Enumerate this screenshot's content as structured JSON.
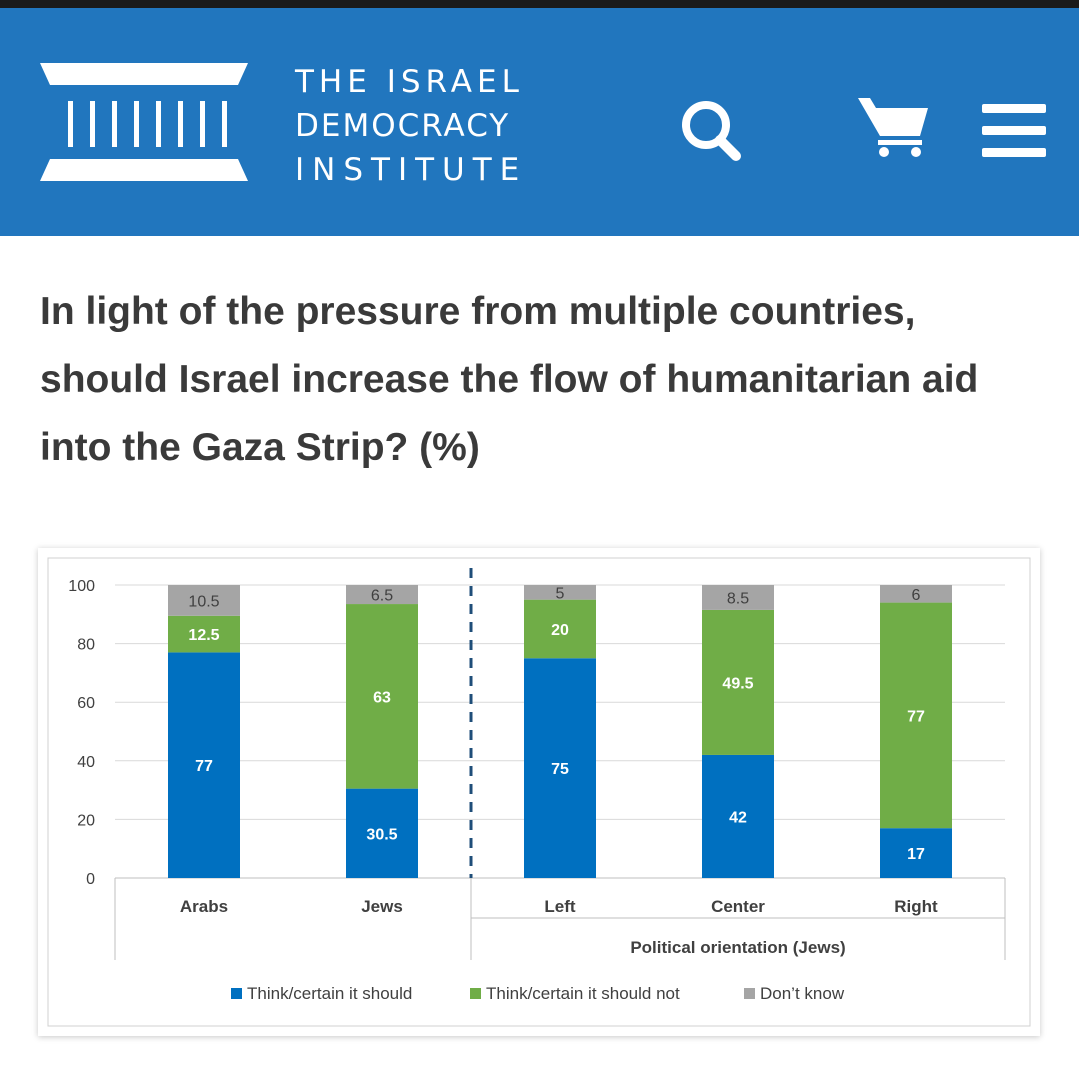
{
  "header": {
    "logo_lines": [
      "THE ISRAEL",
      "DEMOCRACY",
      "INSTITUTE"
    ],
    "colors": {
      "background": "#2176be",
      "top_strip": "#1a1a1a",
      "icons": "#ffffff"
    },
    "icons": [
      "institute-logo-columns-icon",
      "search-icon",
      "cart-icon",
      "menu-icon"
    ]
  },
  "article": {
    "title_lines": [
      "In light of the pressure from multiple countries,",
      "should Israel increase the flow of humanitarian aid",
      "into the Gaza Strip? (%)"
    ]
  },
  "chart_data": {
    "type": "bar",
    "stacked": true,
    "title": "",
    "xlabel": "",
    "ylabel": "",
    "ylim": [
      0,
      100
    ],
    "yticks": [
      0,
      20,
      40,
      60,
      80,
      100
    ],
    "grid": true,
    "categories": [
      "Arabs",
      "Jews",
      "Left",
      "Center",
      "Right"
    ],
    "group_label": {
      "text": "Political orientation (Jews)",
      "categories": [
        "Left",
        "Center",
        "Right"
      ]
    },
    "divider_after": "Jews",
    "series": [
      {
        "name": "Think/certain it should",
        "color": "#0070c0",
        "values": [
          77,
          30.5,
          75,
          42,
          17
        ]
      },
      {
        "name": "Think/certain it should not",
        "color": "#70ad47",
        "values": [
          12.5,
          63,
          20,
          49.5,
          77
        ]
      },
      {
        "name": "Don’t know",
        "color": "#a5a5a5",
        "values": [
          10.5,
          6.5,
          5,
          8.5,
          6
        ]
      }
    ],
    "data_labels": [
      [
        "77",
        "30.5",
        "75",
        "42",
        "17"
      ],
      [
        "12.5",
        "63",
        "20",
        "49.5",
        "77"
      ],
      [
        "10.5",
        "6.5",
        "5",
        "8.5",
        "6"
      ]
    ],
    "legend_position": "bottom"
  }
}
